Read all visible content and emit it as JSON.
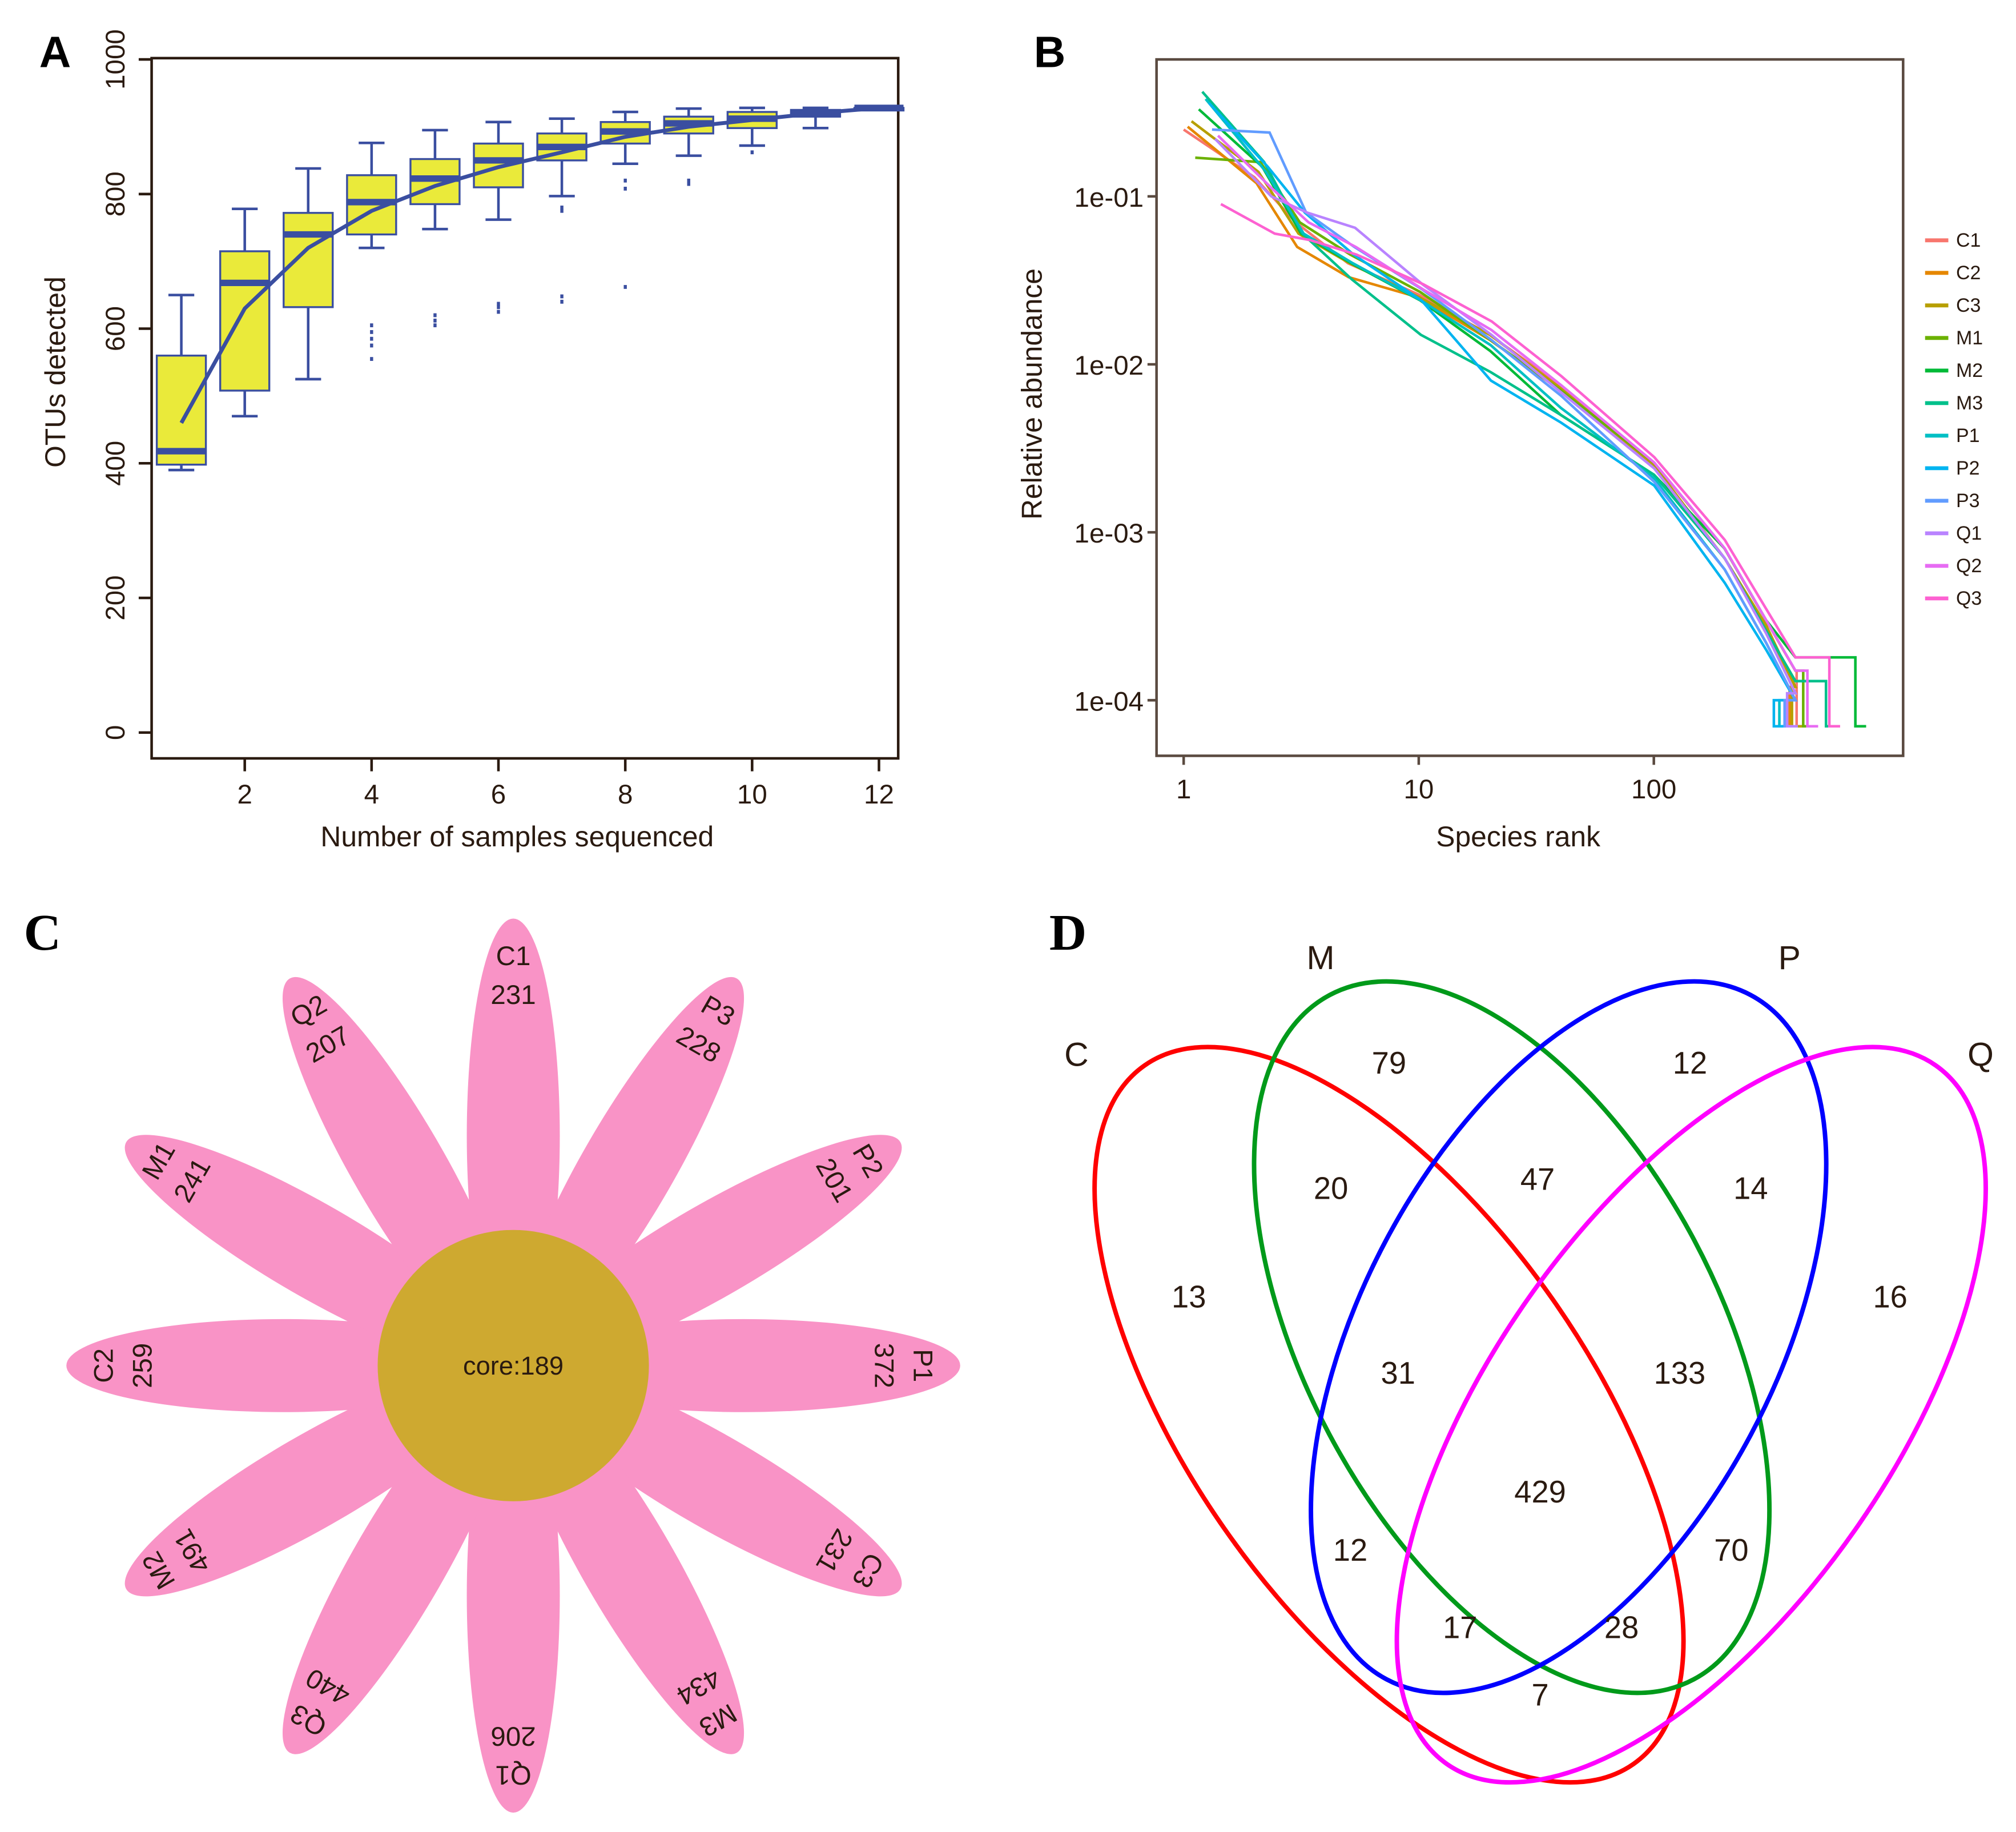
{
  "panels": {
    "a": "A",
    "b": "B",
    "c": "C",
    "d": "D"
  },
  "chart_data": [
    {
      "type": "box",
      "panel": "A",
      "xlabel": "Number of samples sequenced",
      "ylabel": "OTUs detected",
      "ylim": [
        0,
        1000
      ],
      "yticks": [
        0,
        200,
        400,
        600,
        800,
        1000
      ],
      "xticks": [
        2,
        4,
        6,
        8,
        10,
        12
      ],
      "box_fill": "#eaea3a",
      "line_color": "#3a4ea0",
      "boxes": [
        {
          "x": 1,
          "min": 390,
          "q1": 398,
          "median": 418,
          "q3": 560,
          "max": 650,
          "mean": 460,
          "outliers": []
        },
        {
          "x": 2,
          "min": 470,
          "q1": 508,
          "median": 668,
          "q3": 715,
          "max": 778,
          "mean": 630,
          "outliers": []
        },
        {
          "x": 3,
          "min": 525,
          "q1": 632,
          "median": 740,
          "q3": 772,
          "max": 838,
          "mean": 720,
          "outliers": []
        },
        {
          "x": 4,
          "min": 720,
          "q1": 740,
          "median": 788,
          "q3": 828,
          "max": 876,
          "mean": 775,
          "outliers": [
            555,
            575,
            585,
            595,
            605
          ]
        },
        {
          "x": 5,
          "min": 748,
          "q1": 785,
          "median": 823,
          "q3": 852,
          "max": 895,
          "mean": 812,
          "outliers": [
            605,
            612,
            620
          ]
        },
        {
          "x": 6,
          "min": 762,
          "q1": 810,
          "median": 850,
          "q3": 875,
          "max": 907,
          "mean": 840,
          "outliers": [
            625,
            632,
            637
          ]
        },
        {
          "x": 7,
          "min": 797,
          "q1": 850,
          "median": 870,
          "q3": 890,
          "max": 912,
          "mean": 862,
          "outliers": [
            640,
            648,
            775,
            780
          ]
        },
        {
          "x": 8,
          "min": 845,
          "q1": 875,
          "median": 893,
          "q3": 907,
          "max": 922,
          "mean": 885,
          "outliers": [
            662,
            808,
            820
          ]
        },
        {
          "x": 9,
          "min": 857,
          "q1": 890,
          "median": 905,
          "q3": 915,
          "max": 927,
          "mean": 900,
          "outliers": [
            815,
            820
          ]
        },
        {
          "x": 10,
          "min": 872,
          "q1": 898,
          "median": 912,
          "q3": 922,
          "max": 928,
          "mean": 910,
          "outliers": [
            862
          ]
        },
        {
          "x": 11,
          "min": 898,
          "q1": 915,
          "median": 920,
          "q3": 925,
          "max": 928,
          "mean": 920,
          "outliers": []
        },
        {
          "x": 12,
          "min": 928,
          "q1": 928,
          "median": 928,
          "q3": 928,
          "max": 928,
          "mean": 928,
          "outliers": []
        }
      ]
    },
    {
      "type": "line",
      "panel": "B",
      "xlabel": "Species rank",
      "ylabel": "Relative abundance",
      "xscale": "log",
      "yscale": "log",
      "xlim": [
        0.9,
        1000
      ],
      "ylim": [
        5e-05,
        0.6
      ],
      "xticks": [
        {
          "v": 1,
          "l": "1"
        },
        {
          "v": 10,
          "l": "10"
        },
        {
          "v": 100,
          "l": "100"
        }
      ],
      "yticks": [
        {
          "v": 0.1,
          "l": "1e-01"
        },
        {
          "v": 0.01,
          "l": "1e-02"
        },
        {
          "v": 0.001,
          "l": "1e-03"
        },
        {
          "v": 0.0001,
          "l": "1e-04"
        }
      ],
      "legend": "right",
      "ranks": [
        1,
        2,
        3,
        5,
        10,
        20,
        40,
        100,
        200,
        300,
        400
      ],
      "series": [
        {
          "name": "C1",
          "color": "#f8766d",
          "values": [
            0.25,
            0.13,
            0.07,
            0.04,
            0.026,
            0.015,
            0.0075,
            0.0026,
            0.0008,
            0.0003,
            0.00015
          ],
          "end": 450
        },
        {
          "name": "C2",
          "color": "#e58700",
          "values": [
            0.26,
            0.12,
            0.05,
            0.033,
            0.025,
            0.014,
            0.007,
            0.0025,
            0.0007,
            0.00027,
            0.00012
          ],
          "end": 420
        },
        {
          "name": "C3",
          "color": "#b79f00",
          "values": [
            0.28,
            0.14,
            0.06,
            0.04,
            0.025,
            0.015,
            0.0072,
            0.0025,
            0.0007,
            0.00028,
            0.00012
          ],
          "end": 430
        },
        {
          "name": "M1",
          "color": "#6bb100",
          "values": [
            0.17,
            0.16,
            0.07,
            0.045,
            0.027,
            0.014,
            0.007,
            0.0026,
            0.0008,
            0.0003,
            0.00015
          ],
          "end": 480
        },
        {
          "name": "M2",
          "color": "#00ba38",
          "values": [
            0.33,
            0.15,
            0.06,
            0.04,
            0.024,
            0.012,
            0.005,
            0.0022,
            0.0008,
            0.0003,
            0.00018
          ],
          "end": 800
        },
        {
          "name": "M3",
          "color": "#00c08b",
          "values": [
            0.42,
            0.16,
            0.06,
            0.032,
            0.015,
            0.009,
            0.005,
            0.0022,
            0.0007,
            0.00026,
            0.00013
          ],
          "end": 600
        },
        {
          "name": "P1",
          "color": "#00bfc4",
          "values": [
            0.38,
            0.14,
            0.06,
            0.04,
            0.024,
            0.013,
            0.0055,
            0.0021,
            0.0006,
            0.00022,
            0.0001
          ],
          "end": 380
        },
        {
          "name": "P2",
          "color": "#00b4f0",
          "values": [
            0.36,
            0.15,
            0.08,
            0.045,
            0.024,
            0.008,
            0.0045,
            0.0019,
            0.0005,
            0.0002,
            0.0001
          ],
          "end": 360
        },
        {
          "name": "P3",
          "color": "#619cff",
          "values": [
            0.25,
            0.24,
            0.08,
            0.05,
            0.028,
            0.014,
            0.0065,
            0.002,
            0.0006,
            0.00022,
            0.0001
          ],
          "end": 400
        },
        {
          "name": "Q1",
          "color": "#b983ff",
          "values": [
            0.22,
            0.1,
            0.08,
            0.065,
            0.03,
            0.015,
            0.0068,
            0.0024,
            0.0007,
            0.00025,
            0.00011
          ],
          "end": 410
        },
        {
          "name": "Q2",
          "color": "#e76bf3",
          "values": [
            0.23,
            0.11,
            0.07,
            0.05,
            0.028,
            0.016,
            0.0075,
            0.0026,
            0.0008,
            0.0003,
            0.00015
          ],
          "end": 500
        },
        {
          "name": "Q3",
          "color": "#fd61d1",
          "values": [
            0.09,
            0.06,
            0.055,
            0.045,
            0.03,
            0.018,
            0.0085,
            0.0028,
            0.0009,
            0.00035,
            0.00018
          ],
          "end": 620
        }
      ]
    },
    {
      "type": "flower",
      "panel": "C",
      "center_label": "core:189",
      "petal_color": "#f993c6",
      "center_color": "#cea930",
      "petals": [
        {
          "name": "C1",
          "value": "231"
        },
        {
          "name": "P3",
          "value": "228"
        },
        {
          "name": "P2",
          "value": "201"
        },
        {
          "name": "P1",
          "value": "372"
        },
        {
          "name": "C3",
          "value": "231"
        },
        {
          "name": "M3",
          "value": "434"
        },
        {
          "name": "Q1",
          "value": "206"
        },
        {
          "name": "Q3",
          "value": "440"
        },
        {
          "name": "M2",
          "value": "491"
        },
        {
          "name": "C2",
          "value": "259"
        },
        {
          "name": "M1",
          "value": "241"
        },
        {
          "name": "Q2",
          "value": "207"
        }
      ]
    },
    {
      "type": "venn",
      "panel": "D",
      "sets": [
        {
          "name": "C",
          "color": "#ff0000"
        },
        {
          "name": "M",
          "color": "#009a1a"
        },
        {
          "name": "P",
          "color": "#0000ff"
        },
        {
          "name": "Q",
          "color": "#ff00ff"
        }
      ],
      "regions": [
        {
          "sets": "C",
          "value": "13"
        },
        {
          "sets": "M",
          "value": "79"
        },
        {
          "sets": "P",
          "value": "12"
        },
        {
          "sets": "Q",
          "value": "16"
        },
        {
          "sets": "C&M",
          "value": "20"
        },
        {
          "sets": "M&P",
          "value": "47"
        },
        {
          "sets": "P&Q",
          "value": "14"
        },
        {
          "sets": "C&M&P",
          "value": "31"
        },
        {
          "sets": "M&P&Q",
          "value": "133"
        },
        {
          "sets": "C&M&P&Q",
          "value": "429"
        },
        {
          "sets": "C&P",
          "value": "12"
        },
        {
          "sets": "M&Q",
          "value": "70"
        },
        {
          "sets": "C&P&Q",
          "value": "17"
        },
        {
          "sets": "C&M&Q",
          "value": "28"
        },
        {
          "sets": "C&Q",
          "value": "7"
        }
      ]
    }
  ]
}
